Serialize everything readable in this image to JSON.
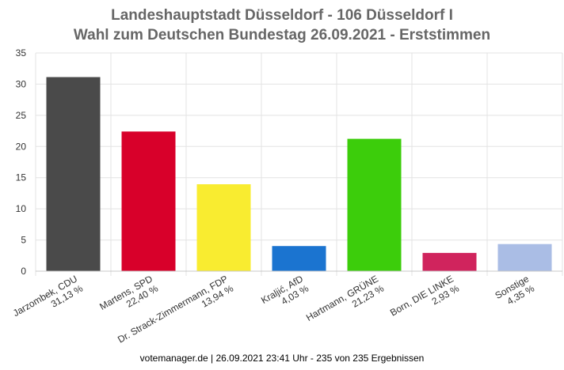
{
  "chart_data": {
    "type": "bar",
    "title_line1": "Landeshauptstadt Düsseldorf - 106 Düsseldorf I",
    "title_line2": "Wahl zum Deutschen Bundestag 26.09.2021  - Erststimmen",
    "categories": [
      "Jarzombek, CDU",
      "Martens, SPD",
      "Dr. Strack-Zimmermann, FDP",
      "Kraljić, AfD",
      "Hartmann, GRÜNE",
      "Born, DIE LINKE",
      "Sonstige"
    ],
    "values": [
      31.13,
      22.4,
      13.94,
      4.03,
      21.23,
      2.93,
      4.35
    ],
    "value_labels": [
      "31,13 %",
      "22,40 %",
      "13,94 %",
      "4,03 %",
      "21,23 %",
      "2,93 %",
      "4,35 %"
    ],
    "colors": [
      "#4a4a4a",
      "#d8002a",
      "#f9ec30",
      "#1b74d0",
      "#3ccd0b",
      "#d0245d",
      "#aabde5"
    ],
    "ylim": [
      0,
      35
    ],
    "yticks": [
      0,
      5,
      10,
      15,
      20,
      25,
      30,
      35
    ],
    "grid": true,
    "legend": "none"
  },
  "footer": "votemanager.de | 26.09.2021 23:41 Uhr - 235 von 235 Ergebnissen"
}
